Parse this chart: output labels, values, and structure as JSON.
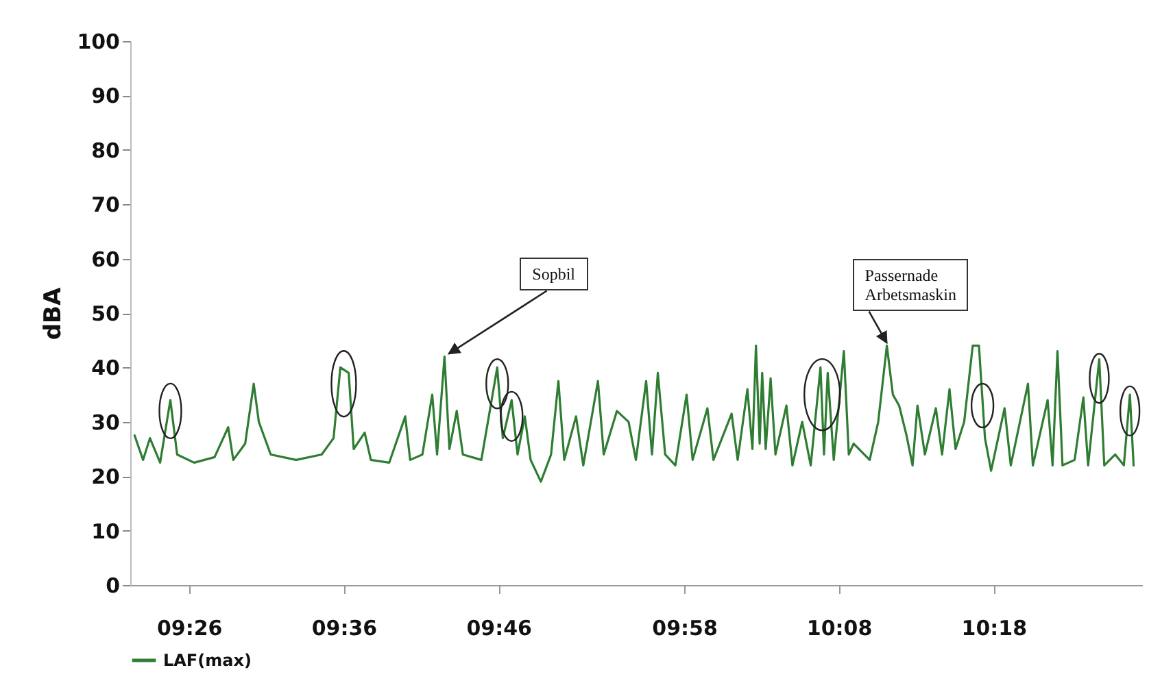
{
  "chart_data": {
    "type": "line",
    "ylabel": "dBA",
    "legend": "bottom",
    "xlim": [
      9.37,
      10.46
    ],
    "xticks": [
      {
        "value": 9.4333,
        "label": "09:26"
      },
      {
        "value": 9.6,
        "label": "09:36"
      },
      {
        "value": 9.7667,
        "label": "09:46"
      },
      {
        "value": 9.9667,
        "label": "09:58"
      },
      {
        "value": 10.1333,
        "label": "10:08"
      },
      {
        "value": 10.3,
        "label": "10:18"
      }
    ],
    "ylim": [
      0,
      100
    ],
    "yticks": [
      0,
      10,
      20,
      30,
      40,
      50,
      60,
      70,
      80,
      90,
      100
    ],
    "annotations": [
      {
        "text": "Sopbil",
        "x": 9.7085,
        "y": 42
      },
      {
        "text": "Passernade Arbetsmaskin",
        "x": 10.185,
        "y": 44
      }
    ],
    "series": [
      {
        "name": "LAF(max)",
        "color": "#2e7d32",
        "x": [
          9.3747,
          9.3838,
          9.3912,
          9.4022,
          9.4132,
          9.4205,
          9.4388,
          9.4608,
          9.4755,
          9.481,
          9.4938,
          9.503,
          9.5085,
          9.5213,
          9.5487,
          9.5762,
          9.589,
          9.5963,
          9.6053,
          9.6107,
          9.6225,
          9.6292,
          9.649,
          9.6662,
          9.6715,
          9.6847,
          9.6953,
          9.7005,
          9.7085,
          9.7138,
          9.7217,
          9.7283,
          9.7482,
          9.7653,
          9.7713,
          9.7808,
          9.7872,
          9.795,
          9.8013,
          9.8123,
          9.8233,
          9.8312,
          9.8375,
          9.8502,
          9.858,
          9.8738,
          9.88,
          9.8942,
          9.9068,
          9.9147,
          9.9257,
          9.932,
          9.9383,
          9.9462,
          9.9572,
          9.9693,
          9.9758,
          9.9917,
          9.9982,
          10.0178,
          10.0243,
          10.0348,
          10.0402,
          10.044,
          10.048,
          10.0507,
          10.0545,
          10.0598,
          10.065,
          10.0768,
          10.0833,
          10.0938,
          10.103,
          10.1135,
          10.1173,
          10.1213,
          10.1278,
          10.1387,
          10.144,
          10.1492,
          10.1665,
          10.1757,
          10.185,
          10.1915,
          10.1982,
          10.2062,
          10.2127,
          10.218,
          10.226,
          10.2378,
          10.2445,
          10.2525,
          10.259,
          10.2683,
          10.2775,
          10.2842,
          10.2907,
          10.2973,
          10.3118,
          10.3185,
          10.337,
          10.3423,
          10.3582,
          10.3635,
          10.3688,
          10.3742,
          10.3873,
          10.3967,
          10.4018,
          10.4138,
          10.4192,
          10.431,
          10.4403,
          10.4468,
          10.4508
        ],
        "values": [
          27.5,
          23,
          27,
          22.5,
          34,
          24,
          22.5,
          23.5,
          29,
          23,
          26,
          37,
          30,
          24,
          23,
          24,
          27,
          40,
          39,
          25,
          28,
          23,
          22.5,
          31,
          23,
          24,
          35,
          24,
          42,
          25,
          32,
          24,
          23,
          40,
          27,
          34,
          24,
          31,
          23,
          19,
          24,
          37.5,
          23,
          31,
          22,
          37.5,
          24,
          32,
          30,
          23,
          37.5,
          24,
          39,
          24,
          22,
          35,
          23,
          32.5,
          23,
          31.5,
          23,
          36,
          25,
          44,
          26,
          39,
          25,
          38,
          24,
          33,
          22,
          30,
          22,
          40,
          24,
          39,
          23,
          43,
          24,
          26,
          23,
          30,
          44,
          35,
          33,
          27.5,
          22,
          33,
          24,
          32.5,
          24,
          36,
          25,
          30,
          44,
          44,
          27,
          21,
          32.5,
          22,
          37,
          22,
          34,
          22,
          43,
          22,
          23,
          34.5,
          22,
          41.5,
          22,
          24,
          22,
          35,
          22
        ]
      }
    ]
  }
}
